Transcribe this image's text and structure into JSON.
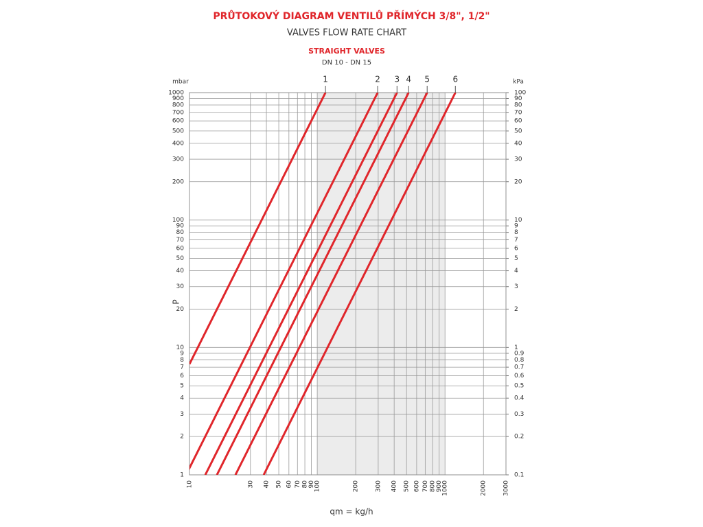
{
  "chart_data": {
    "type": "line",
    "title": "PRŮTOKOVÝ DIAGRAM VENTILŮ PŘÍMÝCH 3/8\", 1/2\"",
    "subtitle": "VALVES FLOW RATE CHART",
    "section_title": "STRAIGHT VALVES",
    "section_subtitle": "DN 10 - DN 15",
    "y_label": "P",
    "y_unit": "mbar",
    "y2_unit": "kPa",
    "x_label": "qm = kg/h",
    "log_scale": true,
    "grid": true,
    "xlim": [
      10,
      3000
    ],
    "ylim": [
      1,
      1000
    ],
    "y2lim": [
      0.1,
      100
    ],
    "xticks": [
      10,
      30,
      40,
      50,
      60,
      70,
      80,
      90,
      100,
      200,
      300,
      400,
      500,
      600,
      700,
      800,
      900,
      1000,
      2000,
      3000
    ],
    "yticks": [
      1,
      2,
      3,
      4,
      5,
      6,
      7,
      8,
      9,
      10,
      20,
      30,
      40,
      50,
      60,
      70,
      80,
      90,
      100,
      200,
      300,
      400,
      500,
      600,
      700,
      800,
      900,
      1000
    ],
    "y2ticks": [
      0.1,
      0.2,
      0.3,
      0.4,
      0.5,
      0.6,
      0.7,
      0.8,
      0.9,
      1,
      2,
      3,
      4,
      5,
      6,
      7,
      8,
      9,
      10,
      20,
      30,
      40,
      50,
      60,
      70,
      80,
      90,
      100
    ],
    "series": [
      {
        "name": "1",
        "color": "#e0262b",
        "x": [
          10,
          116
        ],
        "values": [
          7.4,
          1000
        ]
      },
      {
        "name": "2",
        "color": "#e0262b",
        "x": [
          9.4,
          297
        ],
        "values": [
          1,
          1000
        ]
      },
      {
        "name": "3",
        "color": "#e0262b",
        "x": [
          13.3,
          421
        ],
        "values": [
          1,
          1000
        ]
      },
      {
        "name": "4",
        "color": "#e0262b",
        "x": [
          16.4,
          519
        ],
        "values": [
          1,
          1000
        ]
      },
      {
        "name": "5",
        "color": "#e0262b",
        "x": [
          22.9,
          725
        ],
        "values": [
          1,
          1000
        ]
      },
      {
        "name": "6",
        "color": "#e0262b",
        "x": [
          38.1,
          1205
        ],
        "values": [
          1,
          1000
        ]
      }
    ]
  }
}
